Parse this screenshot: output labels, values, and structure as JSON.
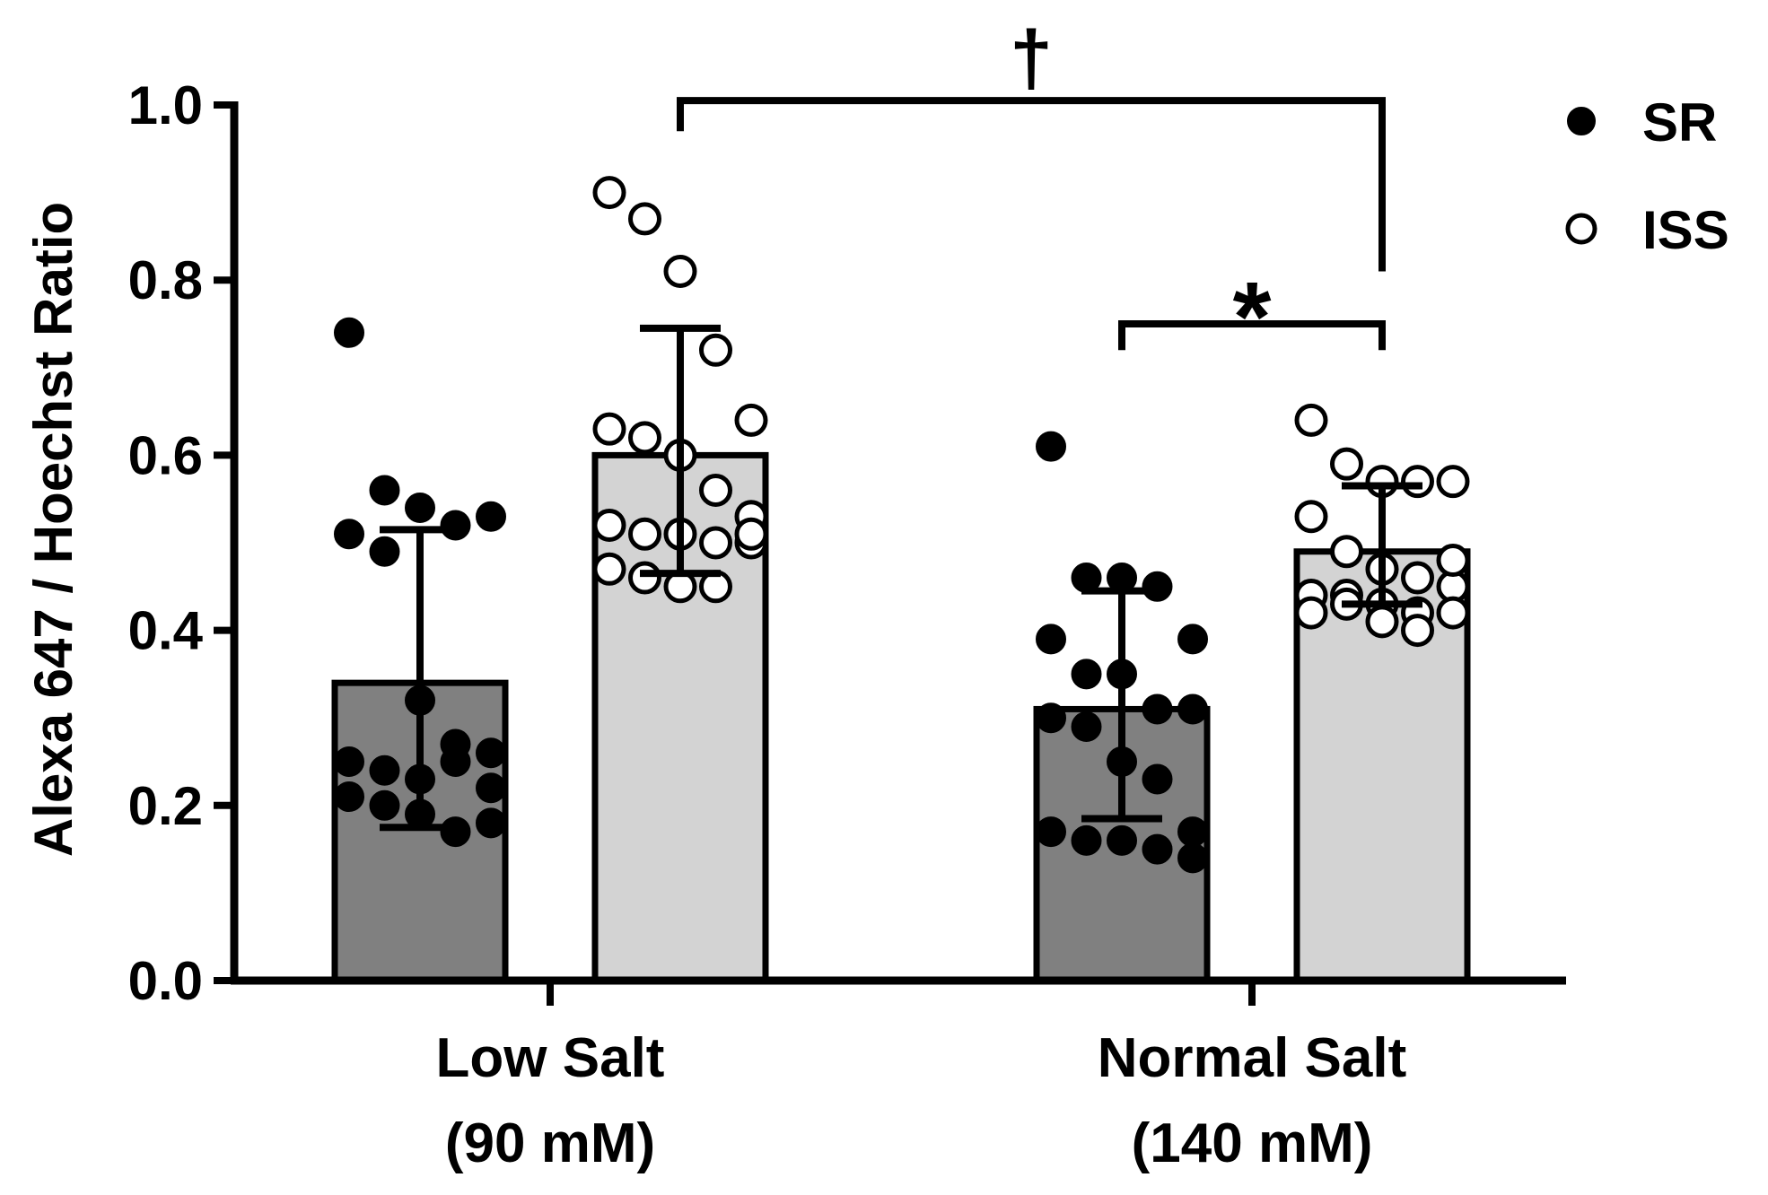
{
  "chart_data": {
    "type": "bar",
    "ylabel": "Alexa 647 / Hoechst Ratio",
    "ylim": [
      0,
      1.0
    ],
    "yticks": [
      "0.0",
      "0.2",
      "0.4",
      "0.6",
      "0.8",
      "1.0"
    ],
    "categories": [
      {
        "line1": "Low Salt",
        "line2": "(90 mM)"
      },
      {
        "line1": "Normal Salt",
        "line2": "(140 mM)"
      }
    ],
    "legend_position": "top-right",
    "grid": false,
    "series": [
      {
        "name": "SR",
        "marker": "filled-circle",
        "bar_color": "#808080",
        "means": [
          0.34,
          0.31
        ],
        "error_low": [
          0.175,
          0.185
        ],
        "error_high": [
          0.515,
          0.445
        ],
        "points": [
          [
            0.74,
            0.56,
            0.54,
            0.52,
            0.53,
            0.51,
            0.49,
            0.32,
            0.27,
            0.26,
            0.25,
            0.24,
            0.23,
            0.25,
            0.22,
            0.21,
            0.2,
            0.19,
            0.17,
            0.18
          ],
          [
            0.61,
            0.46,
            0.46,
            0.45,
            0.39,
            0.39,
            0.35,
            0.35,
            0.31,
            0.31,
            0.3,
            0.29,
            0.25,
            0.23,
            0.17,
            0.17,
            0.16,
            0.16,
            0.15,
            0.14
          ]
        ]
      },
      {
        "name": "ISS",
        "marker": "open-circle",
        "bar_color": "#d3d3d3",
        "means": [
          0.6,
          0.49
        ],
        "error_low": [
          0.465,
          0.43
        ],
        "error_high": [
          0.745,
          0.565
        ],
        "points": [
          [
            0.9,
            0.87,
            0.81,
            0.72,
            0.64,
            0.63,
            0.62,
            0.6,
            0.56,
            0.53,
            0.52,
            0.51,
            0.51,
            0.5,
            0.5,
            0.47,
            0.46,
            0.45,
            0.45,
            0.51
          ],
          [
            0.64,
            0.59,
            0.57,
            0.57,
            0.57,
            0.53,
            0.49,
            0.47,
            0.46,
            0.45,
            0.44,
            0.44,
            0.43,
            0.42,
            0.42,
            0.42,
            0.43,
            0.41,
            0.4,
            0.48
          ]
        ]
      }
    ],
    "annotations": [
      {
        "symbol": "†",
        "from": [
          0,
          1
        ],
        "to": [
          1,
          1
        ],
        "y": 1.005,
        "drop_from_to": [
          0.97,
          0.81
        ]
      },
      {
        "symbol": "*",
        "from": [
          1,
          0
        ],
        "to": [
          1,
          1
        ],
        "y": 0.75,
        "drop_from_to": [
          0.72,
          0.72
        ]
      }
    ]
  }
}
